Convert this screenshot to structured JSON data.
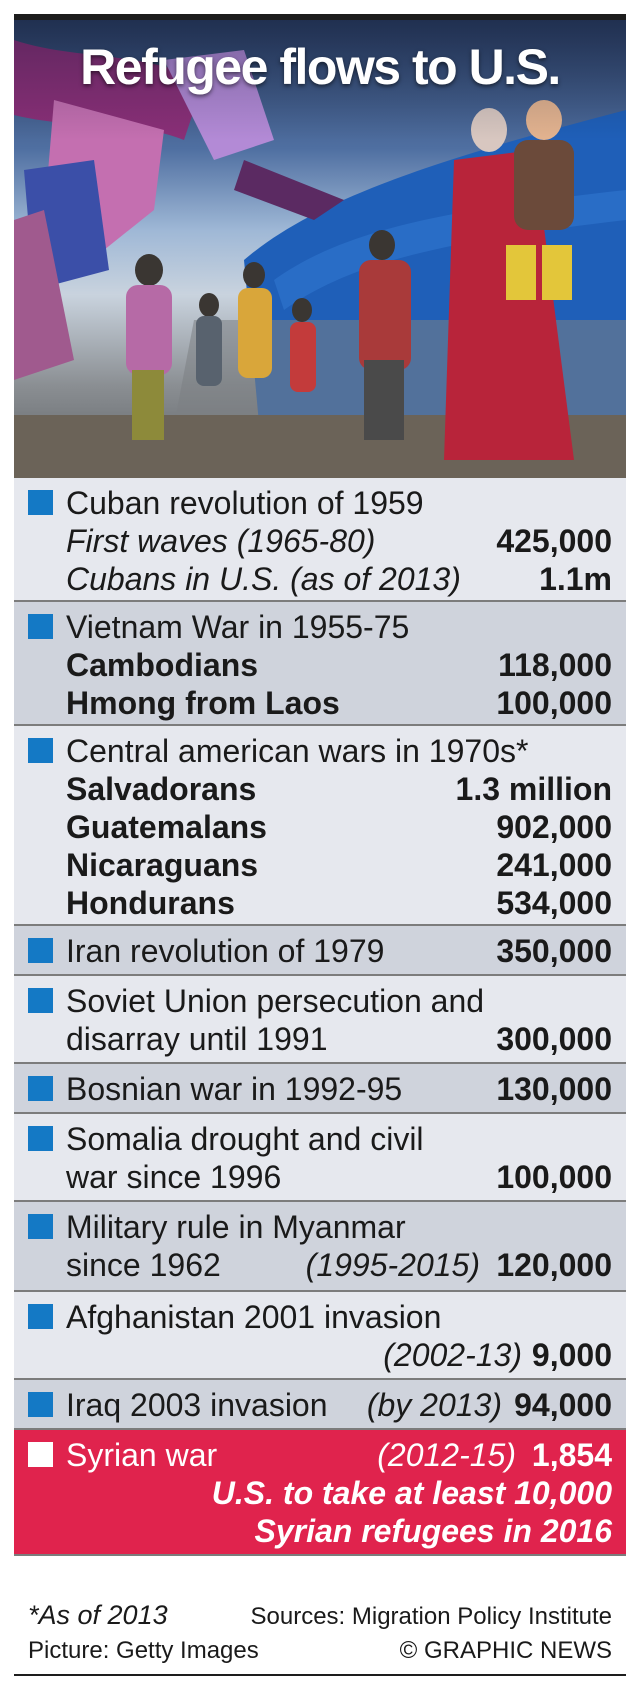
{
  "title": "Refugee flows to U.S.",
  "colors": {
    "marker": "#1479c5",
    "highlight": "#e0234d",
    "row_light": "#e6e8ee",
    "row_dark": "#cfd3dc"
  },
  "rows": [
    {
      "heading": "Cuban revolution of 1959",
      "lines": [
        {
          "label": "First waves (1965-80)",
          "value": "425,000"
        },
        {
          "label": "Cubans in U.S. (as of 2013)",
          "value": "1.1m"
        }
      ]
    },
    {
      "heading": "Vietnam War in 1955-75",
      "lines": [
        {
          "label": "Cambodians",
          "value": "118,000"
        },
        {
          "label": "Hmong from Laos",
          "value": "100,000"
        }
      ]
    },
    {
      "heading": "Central american wars in 1970s*",
      "lines": [
        {
          "label": "Salvadorans",
          "value": "1.3 million"
        },
        {
          "label": "Guatemalans",
          "value": "902,000"
        },
        {
          "label": "Nicaraguans",
          "value": "241,000"
        },
        {
          "label": "Hondurans",
          "value": "534,000"
        }
      ]
    },
    {
      "heading": "Iran revolution of 1979",
      "value": "350,000"
    },
    {
      "heading": "Soviet Union persecution and",
      "heading2": "disarray until 1991",
      "value": "300,000"
    },
    {
      "heading": "Bosnian war in 1992-95",
      "value": "130,000"
    },
    {
      "heading": "Somalia drought and civil",
      "heading2": "war since 1996",
      "value": "100,000"
    },
    {
      "heading": "Military rule in Myanmar",
      "heading2": "since 1962",
      "period": "(1995-2015)",
      "value": "120,000"
    },
    {
      "heading": "Afghanistan 2001 invasion",
      "period": "(2002-13)",
      "value": "9,000"
    },
    {
      "heading": "Iraq 2003 invasion",
      "period": "(by 2013)",
      "value": "94,000"
    },
    {
      "heading": "Syrian war",
      "period": "(2012-15)",
      "value": "1,854",
      "note1": "U.S. to take at least 10,000",
      "note2": "Syrian refugees in 2016"
    }
  ],
  "footer": {
    "footnote": "*As of 2013",
    "sources": "Sources: Migration Policy Institute",
    "picture": "Picture: Getty Images",
    "credit": "© GRAPHIC NEWS"
  }
}
